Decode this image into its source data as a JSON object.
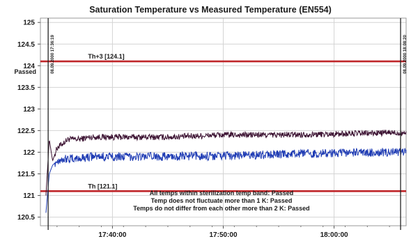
{
  "chart_data": {
    "type": "line",
    "title": "Saturation Temperature vs Measured Temperature (EN554)",
    "xlabel": "",
    "ylabel": "",
    "ylim": [
      120.3,
      125.1
    ],
    "yticks": [
      "125",
      "124.5",
      "124",
      "123.5",
      "123",
      "122.5",
      "122",
      "121.5",
      "121",
      "120.5"
    ],
    "xticks": [
      "17:40:00",
      "17:50:00",
      "18:00:00"
    ],
    "xlim_minutes": [
      33.5,
      66.5
    ],
    "xtick_minutes": [
      40,
      50,
      60
    ],
    "grid": true,
    "series": [
      {
        "name": "",
        "color": "#3a1030",
        "x": [
          34.0,
          34.3,
          34.6,
          35.0,
          35.5,
          36.0,
          37.0,
          38.0,
          40.0,
          45.0,
          50.0,
          55.0,
          60.0,
          65.0,
          66.5
        ],
        "y": [
          121.0,
          122.3,
          121.8,
          122.1,
          122.2,
          122.3,
          122.3,
          122.35,
          122.35,
          122.35,
          122.4,
          122.4,
          122.42,
          122.45,
          122.45
        ]
      },
      {
        "name": "",
        "color": "#1f3cb4",
        "x": [
          34.0,
          34.3,
          34.6,
          35.0,
          35.5,
          36.0,
          37.0,
          38.0,
          40.0,
          45.0,
          50.0,
          55.0,
          60.0,
          65.0,
          66.5
        ],
        "y": [
          120.6,
          121.5,
          121.7,
          121.8,
          121.85,
          121.85,
          121.85,
          121.9,
          121.9,
          121.9,
          121.92,
          121.95,
          121.98,
          122.0,
          122.0
        ]
      }
    ],
    "reference_lines": [
      {
        "label": "Th+3 [124.1]",
        "y": 124.1,
        "color": "#c0262a"
      },
      {
        "label": "Th [121.1]",
        "y": 121.1,
        "color": "#c0262a"
      }
    ],
    "markers": [
      {
        "x": 34.2,
        "label": "08.09.2000 17:36:19"
      },
      {
        "x": 66.0,
        "label": "08.09.2000 18:08:20"
      }
    ],
    "annotations": [
      "Passed",
      "All temps within sterilization temp band: Passed",
      "Temp does not fluctuate more than 1 K: Passed",
      "Temps do not differ from each other more than 2 K: Passed"
    ]
  }
}
